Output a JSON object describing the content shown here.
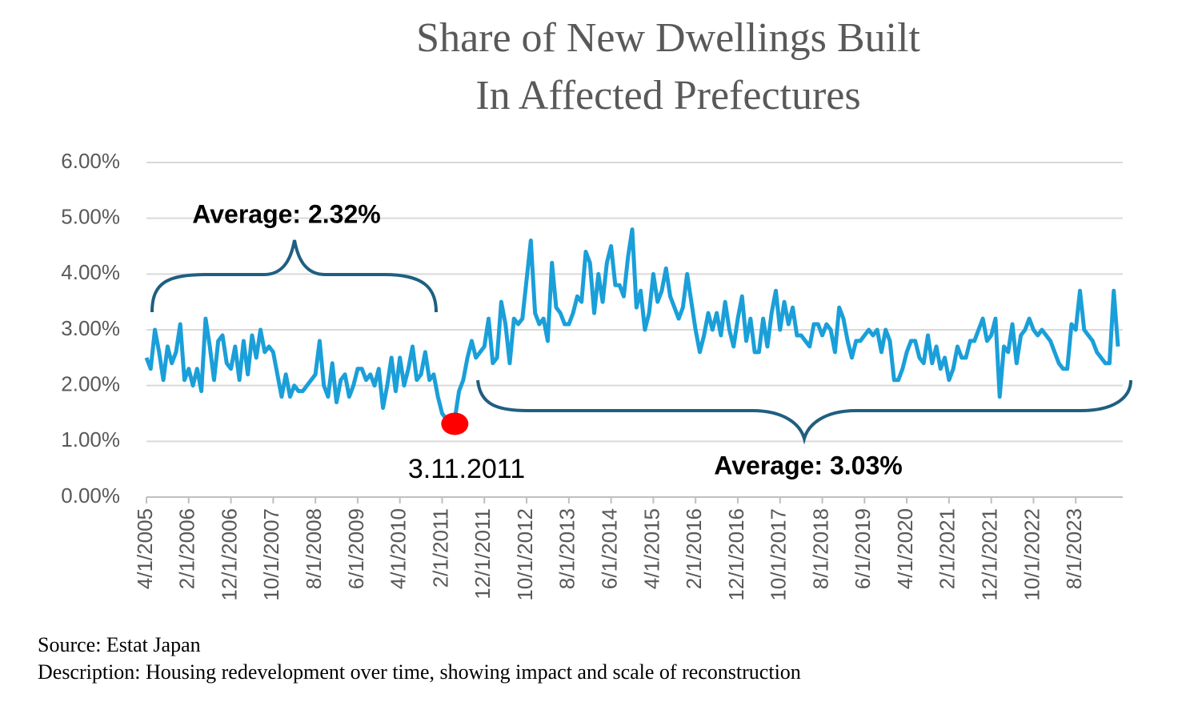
{
  "chart_data": {
    "type": "line",
    "title": "Share of New Dwellings Built In Affected Prefectures",
    "categories": [
      "4/1/2005",
      null,
      null,
      null,
      null,
      null,
      null,
      null,
      null,
      null,
      "2/1/2006",
      null,
      null,
      null,
      null,
      null,
      null,
      null,
      null,
      null,
      "12/1/2006",
      null,
      null,
      null,
      null,
      null,
      null,
      null,
      null,
      null,
      "10/1/2007",
      null,
      null,
      null,
      null,
      null,
      null,
      null,
      null,
      null,
      "8/1/2008",
      null,
      null,
      null,
      null,
      null,
      null,
      null,
      null,
      null,
      "6/1/2009",
      null,
      null,
      null,
      null,
      null,
      null,
      null,
      null,
      null,
      "4/1/2010",
      null,
      null,
      null,
      null,
      null,
      null,
      null,
      null,
      null,
      "2/1/2011",
      null,
      null,
      null,
      null,
      null,
      null,
      null,
      null,
      null,
      "12/1/2011",
      null,
      null,
      null,
      null,
      null,
      null,
      null,
      null,
      null,
      "10/1/2012",
      null,
      null,
      null,
      null,
      null,
      null,
      null,
      null,
      null,
      "8/1/2013",
      null,
      null,
      null,
      null,
      null,
      null,
      null,
      null,
      null,
      "6/1/2014",
      null,
      null,
      null,
      null,
      null,
      null,
      null,
      null,
      null,
      "4/1/2015",
      null,
      null,
      null,
      null,
      null,
      null,
      null,
      null,
      null,
      "2/1/2016",
      null,
      null,
      null,
      null,
      null,
      null,
      null,
      null,
      null,
      "12/1/2016",
      null,
      null,
      null,
      null,
      null,
      null,
      null,
      null,
      null,
      "10/1/2017",
      null,
      null,
      null,
      null,
      null,
      null,
      null,
      null,
      null,
      "8/1/2018",
      null,
      null,
      null,
      null,
      null,
      null,
      null,
      null,
      null,
      "6/1/2019",
      null,
      null,
      null,
      null,
      null,
      null,
      null,
      null,
      null,
      "4/1/2020",
      null,
      null,
      null,
      null,
      null,
      null,
      null,
      null,
      null,
      "2/1/2021",
      null,
      null,
      null,
      null,
      null,
      null,
      null,
      null,
      null,
      "12/1/2021",
      null,
      null,
      null,
      null,
      null,
      null,
      null,
      null,
      null,
      "10/1/2022",
      null,
      null,
      null,
      null,
      null,
      null,
      null,
      null,
      null,
      "8/1/2023",
      null,
      null,
      null,
      null,
      null,
      null,
      null,
      null,
      null,
      null
    ],
    "values": [
      2.5,
      2.3,
      3.0,
      2.6,
      2.1,
      2.7,
      2.4,
      2.6,
      3.1,
      2.1,
      2.3,
      2.0,
      2.3,
      1.9,
      3.2,
      2.7,
      2.1,
      2.8,
      2.9,
      2.4,
      2.3,
      2.7,
      2.1,
      2.8,
      2.2,
      2.9,
      2.5,
      3.0,
      2.6,
      2.7,
      2.6,
      2.2,
      1.8,
      2.2,
      1.8,
      2.0,
      1.9,
      1.9,
      2.0,
      2.1,
      2.2,
      2.8,
      2.0,
      1.8,
      2.4,
      1.7,
      2.1,
      2.2,
      1.8,
      2.0,
      2.3,
      2.3,
      2.1,
      2.2,
      2.0,
      2.3,
      1.6,
      2.0,
      2.5,
      1.9,
      2.5,
      2.0,
      2.3,
      2.7,
      2.1,
      2.2,
      2.6,
      2.1,
      2.2,
      1.8,
      1.5,
      1.4,
      1.4,
      1.4,
      1.9,
      2.1,
      2.5,
      2.8,
      2.5,
      2.6,
      2.7,
      3.2,
      2.4,
      2.5,
      3.5,
      3.1,
      2.4,
      3.2,
      3.1,
      3.2,
      3.9,
      4.6,
      3.3,
      3.1,
      3.2,
      2.8,
      4.2,
      3.4,
      3.3,
      3.1,
      3.1,
      3.3,
      3.6,
      3.5,
      4.4,
      4.2,
      3.3,
      4.0,
      3.5,
      4.2,
      4.5,
      3.8,
      3.8,
      3.6,
      4.3,
      4.8,
      3.4,
      3.7,
      3.0,
      3.3,
      4.0,
      3.5,
      3.7,
      4.1,
      3.6,
      3.4,
      3.2,
      3.4,
      4.0,
      3.5,
      3.0,
      2.6,
      2.9,
      3.3,
      3.0,
      3.3,
      2.9,
      3.5,
      3.0,
      2.7,
      3.2,
      3.6,
      2.8,
      3.2,
      2.6,
      2.6,
      3.2,
      2.7,
      3.3,
      3.7,
      3.0,
      3.5,
      3.1,
      3.4,
      2.9,
      2.9,
      2.8,
      2.7,
      3.1,
      3.1,
      2.9,
      3.1,
      3.0,
      2.6,
      3.4,
      3.2,
      2.8,
      2.5,
      2.8,
      2.8,
      2.9,
      3.0,
      2.9,
      3.0,
      2.6,
      3.0,
      2.8,
      2.1,
      2.1,
      2.3,
      2.6,
      2.8,
      2.8,
      2.5,
      2.4,
      2.9,
      2.4,
      2.7,
      2.3,
      2.5,
      2.1,
      2.3,
      2.7,
      2.5,
      2.5,
      2.8,
      2.8,
      3.0,
      3.2,
      2.8,
      2.9,
      3.2,
      1.8,
      2.7,
      2.6,
      3.1,
      2.4,
      2.9,
      3.0,
      3.2,
      3.0,
      2.9,
      3.0,
      2.9,
      2.8,
      2.6,
      2.4,
      2.3,
      2.3,
      3.1,
      3.0,
      3.7,
      3.0,
      2.9,
      2.8,
      2.6,
      2.5,
      2.4,
      2.4,
      3.7,
      2.7
    ],
    "color": "#1a9fd9",
    "ylim": [
      0,
      6
    ],
    "yticks": [
      {
        "value": 0,
        "label": "0.00%"
      },
      {
        "value": 1,
        "label": "1.00%"
      },
      {
        "value": 2,
        "label": "2.00%"
      },
      {
        "value": 3,
        "label": "3.00%"
      },
      {
        "value": 4,
        "label": "4.00%"
      },
      {
        "value": 5,
        "label": "5.00%"
      },
      {
        "value": 6,
        "label": "6.00%"
      }
    ],
    "grid": true,
    "highlight": {
      "index": 73,
      "label": "3.11.2011",
      "color": "#ff0000"
    },
    "annotations": [
      "Average: 2.32%",
      "Average: 3.03%"
    ]
  },
  "footer": {
    "source": "Source: Estat Japan",
    "description": "Description: Housing redevelopment over time, showing impact and scale of reconstruction"
  }
}
